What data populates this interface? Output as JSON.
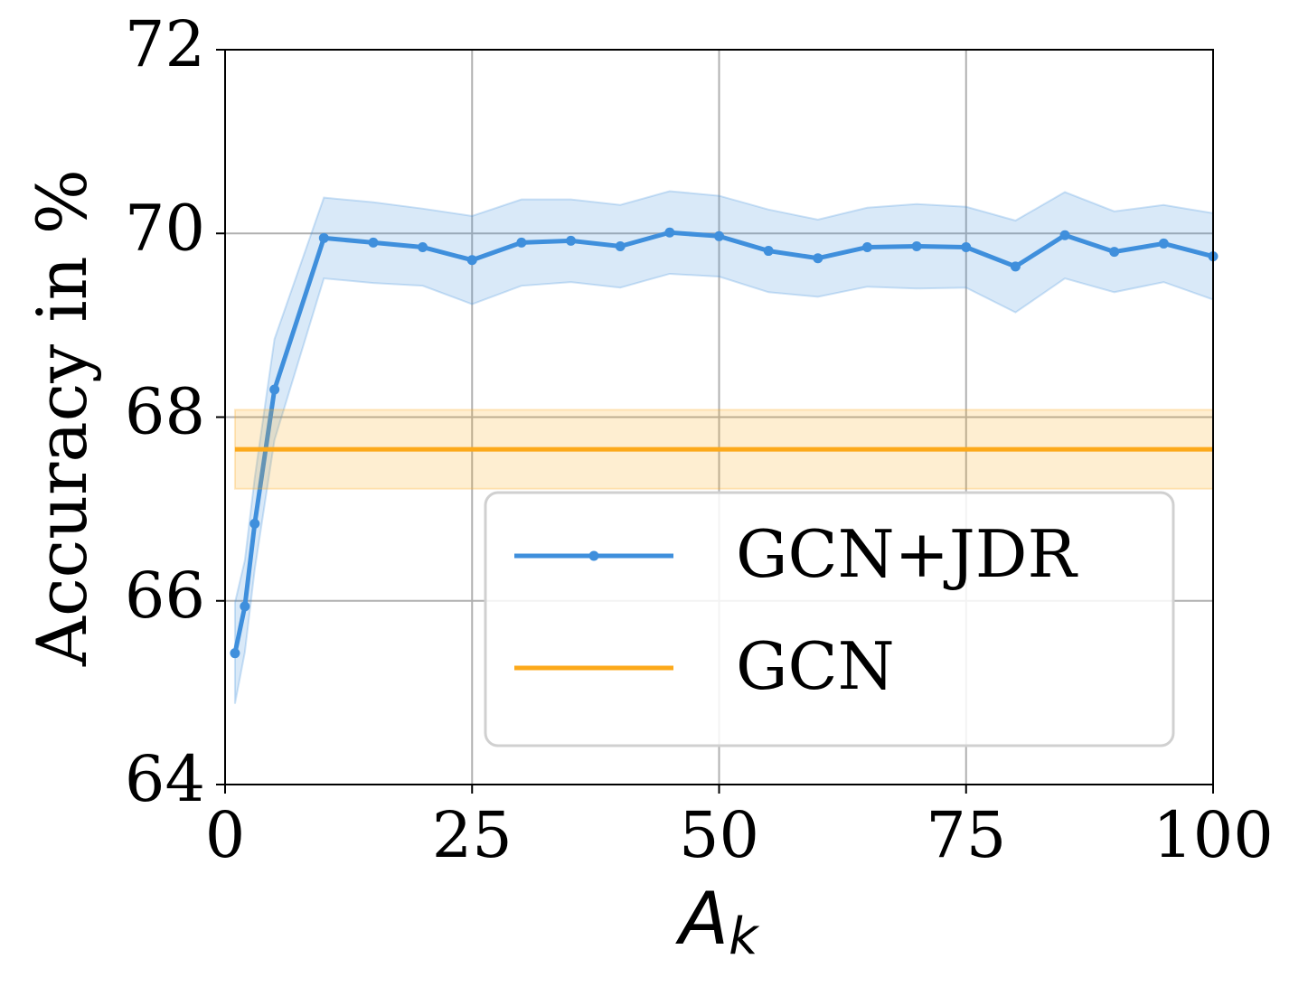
{
  "chart_data": {
    "type": "line",
    "ylabel": "Accuracy in %",
    "xlabel_parts": [
      "A",
      "k"
    ],
    "xlim": [
      0,
      100
    ],
    "ylim": [
      64,
      72
    ],
    "xticks": [
      0,
      25,
      50,
      75,
      100
    ],
    "yticks": [
      64,
      66,
      68,
      70,
      72
    ],
    "grid": true,
    "legend": "lower right",
    "series": [
      {
        "name": "GCN+JDR",
        "color": "#3f8fdc",
        "markers": true,
        "x": [
          1,
          2,
          3,
          5,
          10,
          15,
          20,
          25,
          30,
          35,
          40,
          45,
          50,
          55,
          60,
          65,
          70,
          75,
          80,
          85,
          90,
          95,
          100
        ],
        "values": [
          65.43,
          65.94,
          66.84,
          68.3,
          69.95,
          69.9,
          69.85,
          69.71,
          69.9,
          69.92,
          69.86,
          70.01,
          69.97,
          69.81,
          69.73,
          69.85,
          69.86,
          69.85,
          69.64,
          69.98,
          69.8,
          69.89,
          69.75
        ],
        "errors": [
          0.55,
          0.5,
          0.5,
          0.55,
          0.44,
          0.44,
          0.42,
          0.48,
          0.47,
          0.45,
          0.45,
          0.45,
          0.44,
          0.45,
          0.42,
          0.43,
          0.46,
          0.44,
          0.5,
          0.47,
          0.44,
          0.42,
          0.47
        ]
      },
      {
        "name": "GCN",
        "color": "#fca91b",
        "markers": false,
        "x": [
          1,
          100
        ],
        "values": [
          67.65,
          67.65
        ],
        "errors": [
          0.43,
          0.43
        ]
      }
    ]
  }
}
